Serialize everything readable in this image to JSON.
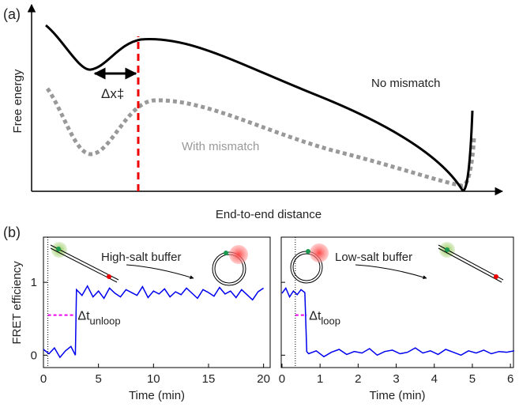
{
  "panel_a": {
    "label": "(a)",
    "y_label": "Free energy",
    "x_label": "End-to-end distance",
    "curve_labels": [
      "No mismatch",
      "With mismatch"
    ],
    "barrier_label": "Δx‡"
  },
  "panel_b_label": "(b)",
  "y_label": "FRET efficiency",
  "chart_data": [
    {
      "type": "line",
      "x_label": "Time (min)",
      "inset_label": "High-salt buffer",
      "dwell_label": [
        "Δt",
        "unloop"
      ],
      "color": "#0000ee",
      "xlim": [
        0,
        20.6
      ],
      "ylim": [
        -0.17,
        1.62
      ],
      "xticks": [
        0,
        5,
        10,
        15,
        20
      ],
      "yticks": [
        0,
        1
      ],
      "show_ytick_labels": true,
      "dwell": {
        "from": 0.4,
        "to": 2.9,
        "level": 0.55
      },
      "x": [
        0,
        0.5,
        1,
        1.5,
        2,
        2.5,
        2.9,
        3,
        3.5,
        4,
        4.5,
        5,
        5.5,
        6,
        6.5,
        7,
        7.5,
        8,
        8.5,
        9,
        9.5,
        10,
        10.5,
        11,
        11.5,
        12,
        12.5,
        13,
        13.5,
        14,
        14.5,
        15,
        15.5,
        16,
        16.5,
        17,
        17.5,
        18,
        18.5,
        19,
        19.5,
        20
      ],
      "values": [
        0.08,
        0.02,
        0.1,
        -0.03,
        0.06,
        0.12,
        0.0,
        0.9,
        0.82,
        0.95,
        0.8,
        0.88,
        0.78,
        0.92,
        0.85,
        0.8,
        0.9,
        0.86,
        0.82,
        0.94,
        0.79,
        0.88,
        0.84,
        0.91,
        0.8,
        0.87,
        0.83,
        0.92,
        0.85,
        0.78,
        0.9,
        0.86,
        0.81,
        0.93,
        0.84,
        0.88,
        0.79,
        0.9,
        0.83,
        0.76,
        0.87,
        0.92
      ]
    },
    {
      "type": "line",
      "x_label": "Time (min)",
      "inset_label": "Low-salt buffer",
      "dwell_label": [
        "Δt",
        "loop"
      ],
      "color": "#0000ee",
      "xlim": [
        -0.02,
        6.08
      ],
      "ylim": [
        -0.17,
        1.62
      ],
      "xticks": [
        0,
        1,
        2,
        3,
        4,
        5,
        6
      ],
      "yticks": [
        0,
        1
      ],
      "show_ytick_labels": false,
      "dwell": {
        "from": 0.35,
        "to": 0.65,
        "level": 0.55
      },
      "x": [
        0,
        0.1,
        0.2,
        0.3,
        0.4,
        0.5,
        0.6,
        0.65,
        0.7,
        0.9,
        1.1,
        1.3,
        1.5,
        1.7,
        1.9,
        2.1,
        2.3,
        2.5,
        2.7,
        2.9,
        3.1,
        3.3,
        3.5,
        3.7,
        3.9,
        4.1,
        4.3,
        4.5,
        4.7,
        4.9,
        5.1,
        5.3,
        5.5,
        5.7,
        5.9,
        6.1
      ],
      "values": [
        0.85,
        0.92,
        0.8,
        0.88,
        0.83,
        0.9,
        0.86,
        0.05,
        0.02,
        0.06,
        -0.02,
        0.04,
        0.08,
        0.01,
        0.05,
        0.03,
        0.09,
        0.0,
        0.05,
        0.07,
        0.02,
        0.04,
        0.1,
        0.03,
        0.06,
        0.01,
        0.08,
        0.04,
        0.0,
        0.06,
        0.03,
        0.07,
        0.02,
        0.05,
        0.04,
        0.06
      ]
    }
  ]
}
